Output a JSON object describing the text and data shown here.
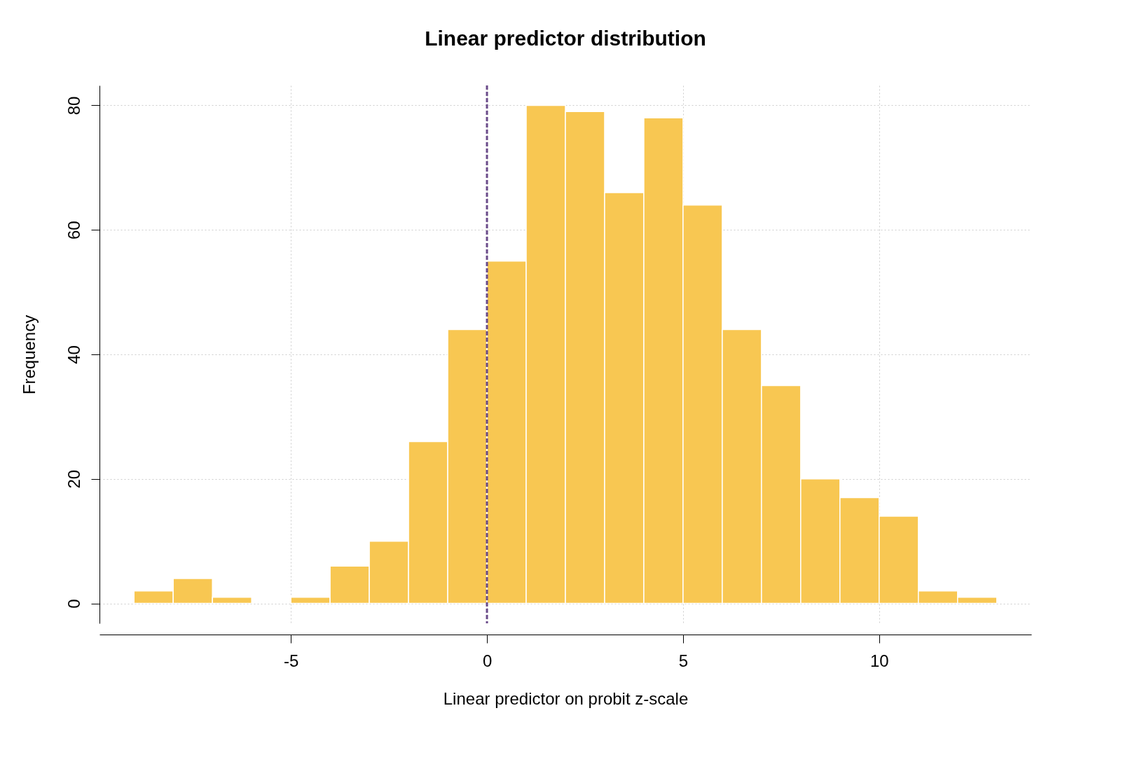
{
  "chart_data": {
    "type": "histogram",
    "title": "Linear predictor distribution",
    "xlabel": "Linear predictor on probit z-scale",
    "ylabel": "Frequency",
    "bins": [
      -9,
      -8,
      -7,
      -6,
      -5,
      -4,
      -3,
      -2,
      -1,
      0,
      1,
      2,
      3,
      4,
      5,
      6,
      7,
      8,
      9,
      10,
      11,
      12,
      13
    ],
    "values": [
      2,
      4,
      1,
      0,
      1,
      6,
      10,
      26,
      44,
      55,
      80,
      79,
      66,
      78,
      64,
      44,
      35,
      20,
      17,
      14,
      2,
      1
    ],
    "color": "#f8c752",
    "xlim": [
      -9.88,
      13.88
    ],
    "ylim": [
      -3.2,
      83.2
    ],
    "xticks": [
      -5,
      0,
      5,
      10
    ],
    "yticks": [
      0,
      20,
      40,
      60,
      80
    ],
    "grid": true,
    "ref_lines": [
      {
        "axis": "x",
        "value": 0,
        "color": "#6b4c8a",
        "line_style": "dashed"
      }
    ]
  }
}
